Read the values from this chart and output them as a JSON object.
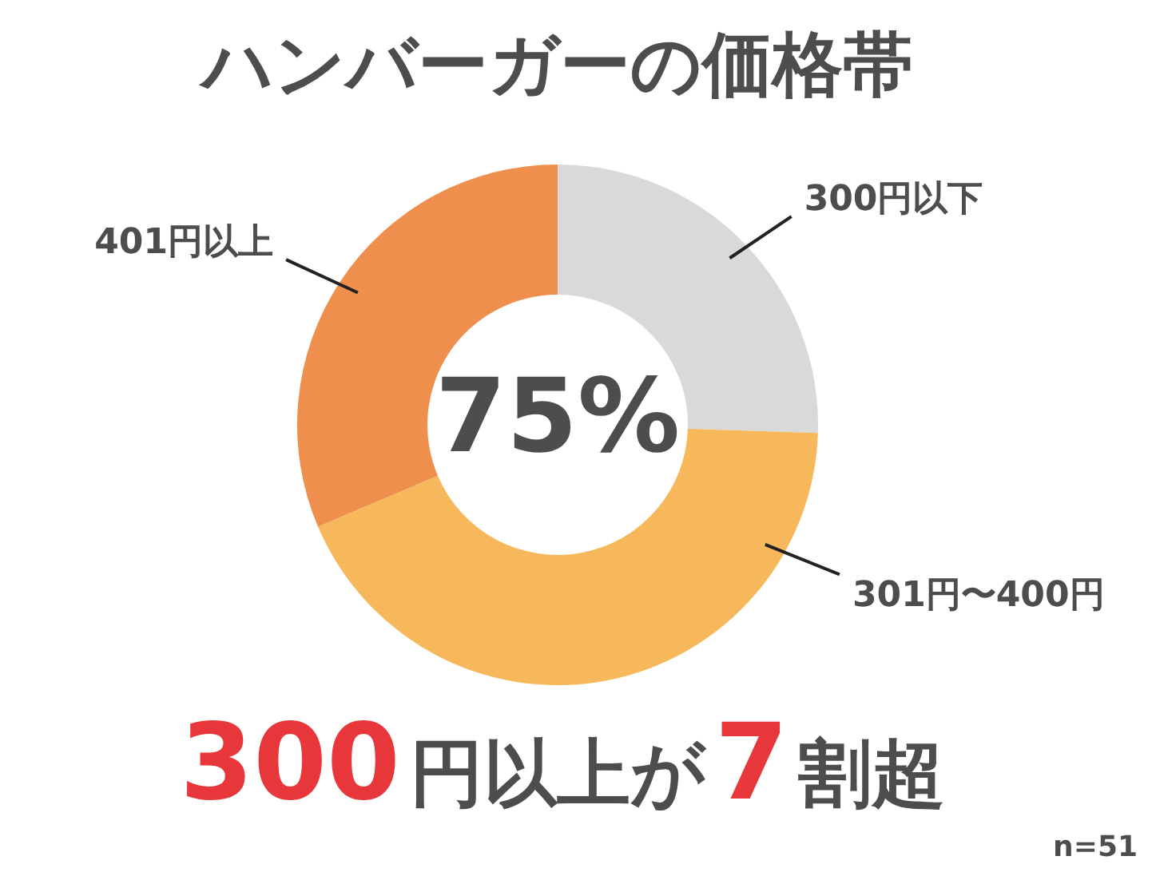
{
  "chart_data": {
    "type": "donut",
    "title": "ハンバーガーの価格帯",
    "categories": [
      "300円以下",
      "301円〜400円",
      "401円以上"
    ],
    "values": [
      25.5,
      43.1,
      31.4
    ],
    "colors": [
      "#d9d9d9",
      "#f6b85a",
      "#ef8f4e"
    ],
    "legend": false,
    "annotations": [
      "75%",
      "300円以上が7割超",
      "n=51"
    ]
  }
}
